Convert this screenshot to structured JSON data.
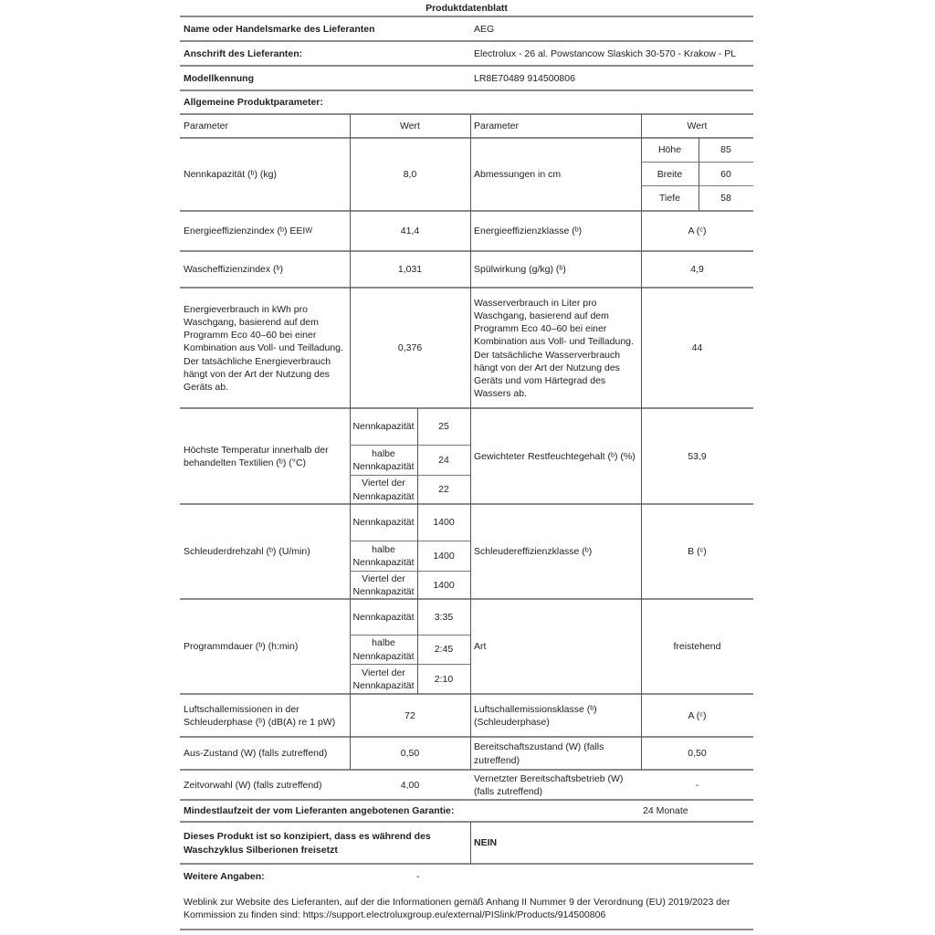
{
  "title": "Produktdatenblatt",
  "supplier": {
    "label": "Name oder Handelsmarke des Lieferanten",
    "value": "AEG"
  },
  "address": {
    "label": "Anschrift des Lieferanten:",
    "value": "Electrolux - 26 al. Powstancow Slaskich 30-570 - Krakow - PL"
  },
  "model": {
    "label": "Modellkennung",
    "value": "LR8E70489 914500806"
  },
  "general": {
    "label": "Allgemeine Produktparameter:"
  },
  "header": {
    "param": "Parameter",
    "value": "Wert"
  },
  "rows": {
    "capacity": {
      "label": "Nennkapazität (ᵇ) (kg)",
      "value": "8,0"
    },
    "dimensions": {
      "label": "Abmessungen in cm",
      "height_label": "Höhe",
      "height": "85",
      "width_label": "Breite",
      "width": "60",
      "depth_label": "Tiefe",
      "depth": "58"
    },
    "eei": {
      "label": "Energieeffizienzindex (ᵇ) EEI",
      "sub": "W",
      "value": "41,4"
    },
    "energy_class": {
      "label": "Energieeffizienzklasse (ᵇ)",
      "value": "A (ᶜ)"
    },
    "wash_index": {
      "label": "Wascheffizienzindex (ᵇ)",
      "value": "1,031"
    },
    "rinse": {
      "label": "Spülwirkung (g/kg) (ᵇ)",
      "value": "4,9"
    },
    "energy": {
      "label": "Energieverbrauch in kWh pro Waschgang, basierend auf dem Programm Eco 40–60 bei einer Kombination aus Voll- und Teilladung. Der tatsächliche Energieverbrauch hängt von der Art der Nutzung des Geräts ab.",
      "value": "0,376"
    },
    "water": {
      "label": "Wasserverbrauch in Liter pro Waschgang, basierend auf dem Programm Eco 40–60 bei einer Kombination aus Voll- und Teilladung. Der tatsächliche Wasserverbrauch hängt von der Art der Nutzung des Geräts und vom Härtegrad des Wassers ab.",
      "value": "44"
    },
    "temp": {
      "label": "Höchste Temperatur innerhalb der behandelten Textilien (ᵇ) (°C)",
      "sub": [
        {
          "label": "Nennkapazität",
          "value": "25"
        },
        {
          "label": "halbe Nennkapazität",
          "value": "24"
        },
        {
          "label": "Viertel der Nennkapazität",
          "value": "22"
        }
      ]
    },
    "moisture": {
      "label": "Gewichteter Restfeuchtegehalt (ᵇ) (%)",
      "value": "53,9"
    },
    "spin": {
      "label": "Schleuderdrehzahl (ᵇ) (U/min)",
      "sub": [
        {
          "label": "Nennkapazität",
          "value": "1400"
        },
        {
          "label": "halbe Nennkapazität",
          "value": "1400"
        },
        {
          "label": "Viertel der Nennkapazität",
          "value": "1400"
        }
      ]
    },
    "spin_class": {
      "label": "Schleudereffizienzklasse (ᵇ)",
      "value": "B (ᶜ)"
    },
    "duration": {
      "label": "Programmdauer (ᵇ) (h:min)",
      "sub": [
        {
          "label": "Nennkapazität",
          "value": "3:35"
        },
        {
          "label": "halbe Nennkapazität",
          "value": "2:45"
        },
        {
          "label": "Viertel der Nennkapazität",
          "value": "2:10"
        }
      ]
    },
    "type": {
      "label": "Art",
      "value": "freistehend"
    },
    "noise": {
      "label": "Luftschallemissionen in der Schleuderphase (ᵇ) (dB(A) re 1 pW)",
      "value": "72"
    },
    "noise_class": {
      "label": "Luftschallemissionsklasse (ᵇ) (Schleuderphase)",
      "value": "A (ᶜ)"
    },
    "off": {
      "label": "Aus-Zustand (W) (falls zutreffend)",
      "value": "0,50"
    },
    "standby": {
      "label": "Bereitschaftszustand (W) (falls zutreffend)",
      "value": "0,50"
    },
    "delay": {
      "label": "Zeitvorwahl (W) (falls zutreffend)",
      "value": "4,00"
    },
    "network": {
      "label": "Vernetzter Bereitschaftsbetrieb (W) (falls zutreffend)",
      "value": "-"
    }
  },
  "warranty": {
    "label": "Mindestlaufzeit der vom Lieferanten angebotenen Garantie:",
    "value": "24 Monate"
  },
  "silver": {
    "label": "Dieses Produkt ist so konzipiert, dass es während des Waschzyklus Silberionen freisetzt",
    "value": "NEIN"
  },
  "further": {
    "label": "Weitere Angaben:",
    "value": "-"
  },
  "weblink": {
    "text": "Weblink zur Website des Lieferanten, auf der die Informationen gemäß Anhang II Nummer 9 der Verordnung (EU) 2019/2023 der Kommission zu finden sind: https://support.electroluxgroup.eu/external/PISlink/Products/914500806"
  }
}
